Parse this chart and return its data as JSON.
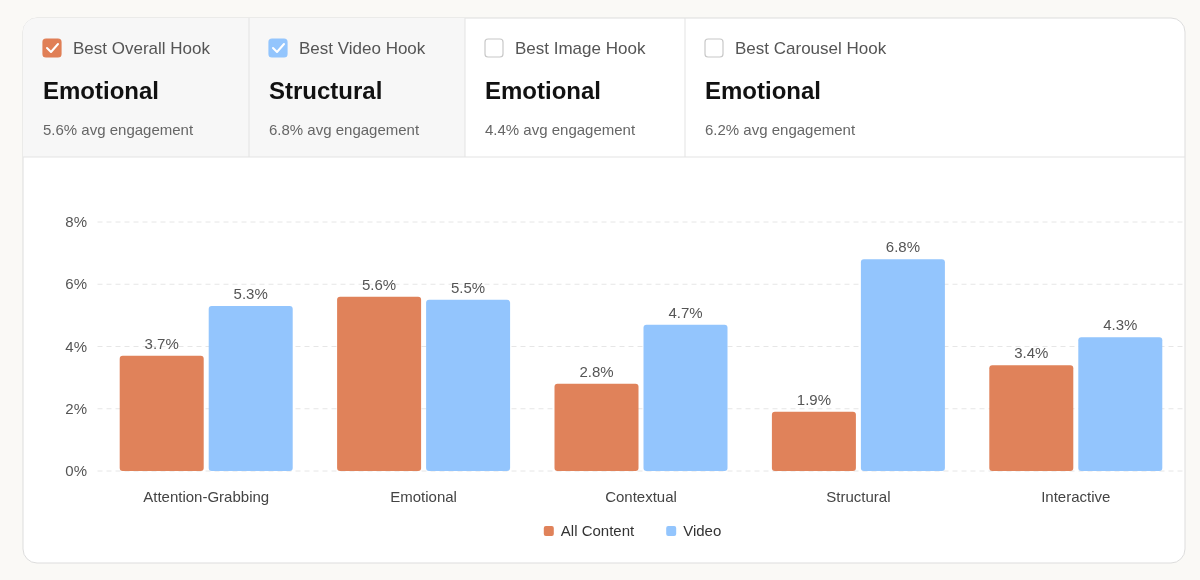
{
  "chart_data": [
    {
      "type": "other",
      "title": "Best Overall Hook",
      "subtitle": "Emotional",
      "annotations": [
        "5.6% avg engagement"
      ],
      "color": "#e07f56"
    },
    {
      "type": "other",
      "title": "Best Video Hook",
      "subtitle": "Structural",
      "annotations": [
        "6.8% avg engagement"
      ],
      "color": "#93c5fd"
    },
    {
      "type": "other",
      "title": "Best Image Hook",
      "subtitle": "Emotional",
      "annotations": [
        "4.4% avg engagement"
      ]
    },
    {
      "type": "other",
      "title": "Best Carousel Hook",
      "subtitle": "Emotional",
      "annotations": [
        "6.2% avg engagement"
      ]
    },
    {
      "type": "bar",
      "categories": [
        "Attention-Grabbing",
        "Emotional",
        "Contextual",
        "Structural",
        "Interactive"
      ],
      "series": [
        {
          "name": "All Content",
          "color": "#e0825a",
          "values": [
            3.7,
            5.6,
            2.8,
            1.9,
            3.4
          ],
          "value_labels": [
            "3.7%",
            "5.6%",
            "2.8%",
            "1.9%",
            "3.4%"
          ]
        },
        {
          "name": "Video",
          "color": "#93c5fd",
          "values": [
            5.3,
            5.5,
            4.7,
            6.8,
            4.3
          ],
          "value_labels": [
            "5.3%",
            "5.5%",
            "4.7%",
            "6.8%",
            "4.3%"
          ]
        }
      ],
      "ylim": [
        0,
        8
      ],
      "yticks": [
        {
          "value": 0,
          "label": "0%"
        },
        {
          "value": 2,
          "label": "2%"
        },
        {
          "value": 4,
          "label": "4%"
        },
        {
          "value": 6,
          "label": "6%"
        },
        {
          "value": 8,
          "label": "8%"
        }
      ],
      "grid": "y",
      "legend": "bottom"
    }
  ]
}
